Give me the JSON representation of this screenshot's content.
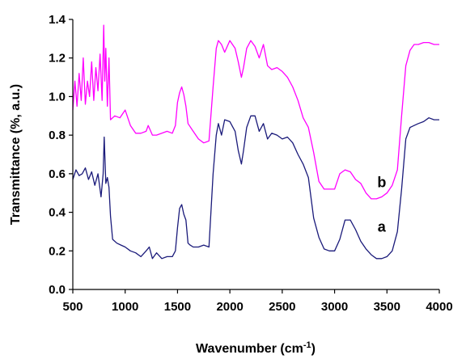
{
  "chart_data": {
    "type": "line",
    "xlabel": "Wavenumber (cm",
    "xlabel_sup": "-1",
    "xlabel_end": ")",
    "ylabel": "Transmittance (%, a.u.)",
    "xlim": [
      500,
      4000
    ],
    "ylim": [
      0.0,
      1.4
    ],
    "xticks": [
      "500",
      "1000",
      "1500",
      "2000",
      "2500",
      "3000",
      "3500",
      "4000"
    ],
    "yticks": [
      "0.0",
      "0.2",
      "0.4",
      "0.6",
      "0.8",
      "1.0",
      "1.2",
      "1.4"
    ],
    "grid": false,
    "series": [
      {
        "name": "a",
        "color": "#1a1a7a",
        "label_at": [
          3450,
          0.3
        ],
        "x": [
          500,
          530,
          560,
          590,
          620,
          650,
          680,
          710,
          740,
          770,
          790,
          800,
          815,
          830,
          845,
          860,
          880,
          920,
          960,
          1000,
          1050,
          1100,
          1150,
          1200,
          1230,
          1260,
          1300,
          1350,
          1400,
          1450,
          1480,
          1500,
          1520,
          1540,
          1560,
          1580,
          1600,
          1620,
          1650,
          1700,
          1750,
          1800,
          1840,
          1870,
          1890,
          1920,
          1950,
          2000,
          2050,
          2080,
          2110,
          2130,
          2160,
          2200,
          2240,
          2280,
          2320,
          2360,
          2400,
          2450,
          2500,
          2550,
          2600,
          2650,
          2700,
          2750,
          2800,
          2850,
          2900,
          2950,
          3000,
          3050,
          3100,
          3150,
          3200,
          3250,
          3300,
          3350,
          3400,
          3450,
          3500,
          3550,
          3600,
          3640,
          3680,
          3720,
          3760,
          3800,
          3850,
          3900,
          3950,
          4000
        ],
        "y": [
          0.57,
          0.62,
          0.59,
          0.6,
          0.63,
          0.57,
          0.61,
          0.54,
          0.6,
          0.48,
          0.6,
          0.79,
          0.55,
          0.58,
          0.53,
          0.38,
          0.26,
          0.24,
          0.23,
          0.22,
          0.2,
          0.19,
          0.17,
          0.2,
          0.22,
          0.16,
          0.19,
          0.16,
          0.17,
          0.17,
          0.2,
          0.32,
          0.42,
          0.44,
          0.39,
          0.36,
          0.24,
          0.23,
          0.22,
          0.22,
          0.23,
          0.22,
          0.6,
          0.8,
          0.86,
          0.8,
          0.88,
          0.87,
          0.82,
          0.72,
          0.65,
          0.72,
          0.84,
          0.9,
          0.9,
          0.82,
          0.86,
          0.78,
          0.81,
          0.8,
          0.78,
          0.79,
          0.76,
          0.7,
          0.65,
          0.58,
          0.37,
          0.27,
          0.21,
          0.2,
          0.2,
          0.26,
          0.36,
          0.36,
          0.31,
          0.25,
          0.21,
          0.18,
          0.16,
          0.16,
          0.17,
          0.2,
          0.3,
          0.52,
          0.78,
          0.84,
          0.85,
          0.86,
          0.87,
          0.89,
          0.88,
          0.88
        ]
      },
      {
        "name": "b",
        "color": "#ff00ff",
        "label_at": [
          3450,
          0.53
        ],
        "x": [
          500,
          520,
          540,
          560,
          580,
          600,
          620,
          640,
          660,
          680,
          700,
          720,
          740,
          760,
          780,
          795,
          805,
          815,
          830,
          845,
          860,
          900,
          950,
          1000,
          1050,
          1100,
          1150,
          1200,
          1220,
          1260,
          1300,
          1350,
          1400,
          1450,
          1480,
          1500,
          1520,
          1540,
          1560,
          1580,
          1600,
          1650,
          1700,
          1750,
          1800,
          1840,
          1870,
          1890,
          1920,
          1950,
          2000,
          2050,
          2080,
          2110,
          2130,
          2160,
          2200,
          2240,
          2280,
          2320,
          2360,
          2400,
          2450,
          2500,
          2550,
          2600,
          2650,
          2700,
          2750,
          2800,
          2850,
          2900,
          2950,
          3000,
          3050,
          3100,
          3150,
          3200,
          3250,
          3300,
          3350,
          3400,
          3450,
          3500,
          3550,
          3600,
          3640,
          3680,
          3720,
          3760,
          3800,
          3850,
          3900,
          3950,
          4000
        ],
        "y": [
          0.93,
          1.08,
          0.95,
          1.12,
          0.98,
          1.2,
          0.96,
          1.08,
          1.0,
          1.18,
          0.98,
          1.15,
          1.03,
          1.22,
          0.98,
          1.37,
          1.08,
          1.25,
          0.95,
          1.2,
          0.88,
          0.9,
          0.89,
          0.93,
          0.85,
          0.81,
          0.81,
          0.82,
          0.85,
          0.8,
          0.8,
          0.81,
          0.82,
          0.81,
          0.85,
          0.97,
          1.02,
          1.05,
          1.01,
          0.95,
          0.86,
          0.82,
          0.78,
          0.76,
          0.77,
          1.05,
          1.25,
          1.29,
          1.27,
          1.23,
          1.29,
          1.25,
          1.18,
          1.1,
          1.15,
          1.25,
          1.29,
          1.26,
          1.2,
          1.27,
          1.16,
          1.14,
          1.15,
          1.13,
          1.1,
          1.05,
          0.98,
          0.89,
          0.84,
          0.71,
          0.56,
          0.52,
          0.52,
          0.52,
          0.6,
          0.62,
          0.61,
          0.57,
          0.55,
          0.5,
          0.47,
          0.47,
          0.48,
          0.5,
          0.54,
          0.62,
          0.9,
          1.16,
          1.24,
          1.27,
          1.27,
          1.28,
          1.28,
          1.27,
          1.27
        ]
      }
    ]
  }
}
